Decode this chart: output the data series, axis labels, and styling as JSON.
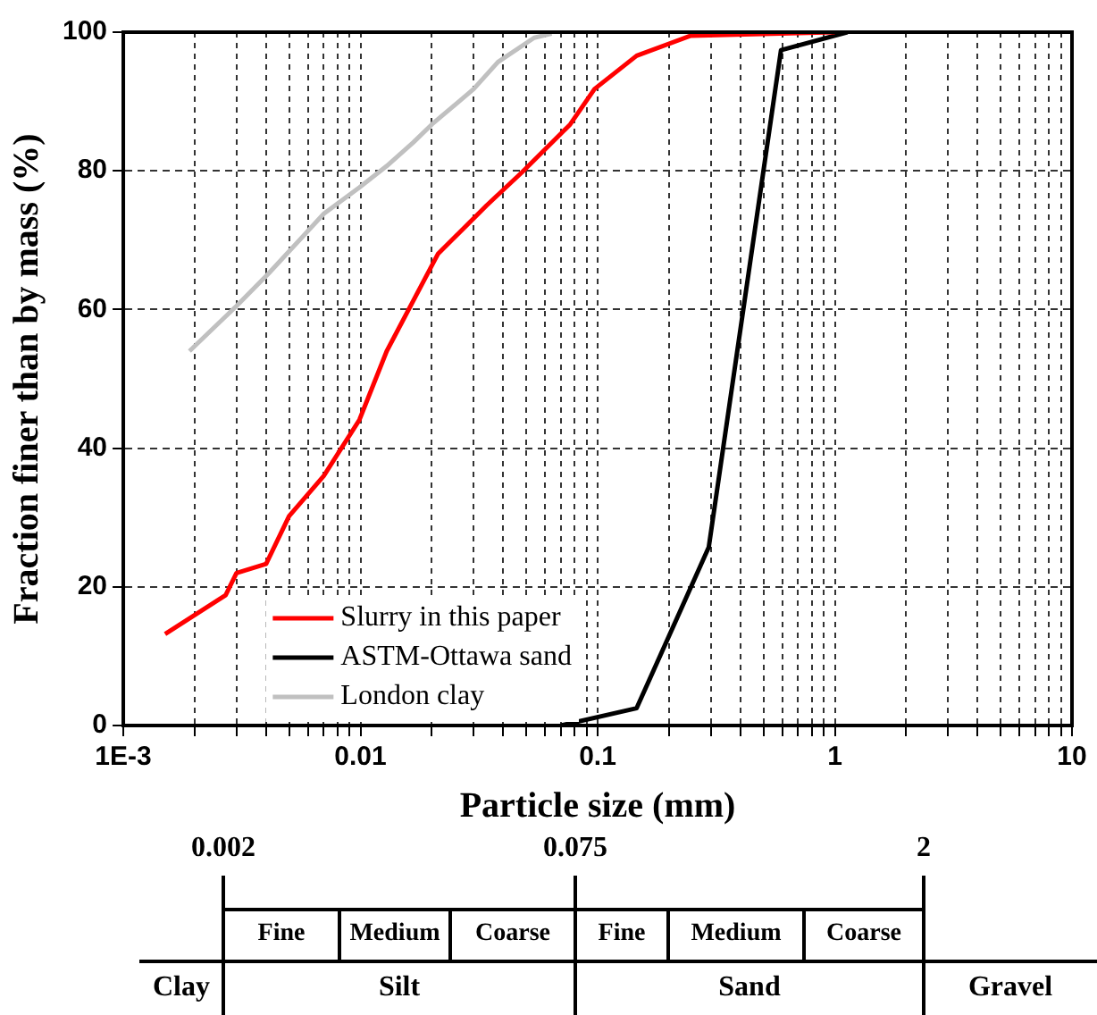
{
  "chart_data": {
    "type": "line",
    "xlabel": "Particle size (mm)",
    "ylabel": "Fraction finer than by mass (%)",
    "log": "x",
    "grid": true,
    "legend": "bottom",
    "marker": "none",
    "line_style": "solid",
    "xlim": [
      0.001,
      10
    ],
    "ylim": [
      0,
      100
    ],
    "xticks": [
      {
        "value": 0.001,
        "label": "1E-3"
      },
      {
        "value": 0.002,
        "label": null
      },
      {
        "value": 0.003,
        "label": null
      },
      {
        "value": 0.004,
        "label": null
      },
      {
        "value": 0.005,
        "label": null
      },
      {
        "value": 0.006,
        "label": null
      },
      {
        "value": 0.007,
        "label": null
      },
      {
        "value": 0.008,
        "label": null
      },
      {
        "value": 0.009,
        "label": null
      },
      {
        "value": 0.01,
        "label": "0.01"
      },
      {
        "value": 0.02,
        "label": null
      },
      {
        "value": 0.03,
        "label": null
      },
      {
        "value": 0.04,
        "label": null
      },
      {
        "value": 0.05,
        "label": null
      },
      {
        "value": 0.06,
        "label": null
      },
      {
        "value": 0.07,
        "label": null
      },
      {
        "value": 0.08,
        "label": null
      },
      {
        "value": 0.09,
        "label": null
      },
      {
        "value": 0.1,
        "label": "0.1"
      },
      {
        "value": 0.2,
        "label": null
      },
      {
        "value": 0.3,
        "label": null
      },
      {
        "value": 0.4,
        "label": null
      },
      {
        "value": 0.5,
        "label": null
      },
      {
        "value": 0.6,
        "label": null
      },
      {
        "value": 0.7,
        "label": null
      },
      {
        "value": 0.8,
        "label": null
      },
      {
        "value": 0.9,
        "label": null
      },
      {
        "value": 1,
        "label": "1"
      },
      {
        "value": 2,
        "label": null
      },
      {
        "value": 3,
        "label": null
      },
      {
        "value": 4,
        "label": null
      },
      {
        "value": 5,
        "label": null
      },
      {
        "value": 6,
        "label": null
      },
      {
        "value": 7,
        "label": null
      },
      {
        "value": 8,
        "label": null
      },
      {
        "value": 9,
        "label": null
      },
      {
        "value": 10,
        "label": "10"
      }
    ],
    "yticks": [
      0,
      20,
      40,
      60,
      80,
      100
    ],
    "series": [
      {
        "name": "Slurry in this paper",
        "color": "#ff0000",
        "x": [
          0.0015,
          0.0027,
          0.003,
          0.004,
          0.005,
          0.007,
          0.0099,
          0.0129,
          0.0212,
          0.034,
          0.048,
          0.0766,
          0.097,
          0.146,
          0.247,
          1.0
        ],
        "values": [
          13.2,
          18.8,
          22,
          23.3,
          30.2,
          36,
          44.1,
          54,
          68,
          75,
          79.8,
          86.7,
          91.8,
          96.6,
          99.5,
          100
        ]
      },
      {
        "name": "ASTM-Ottawa sand",
        "color": "#000000",
        "x": [
          0.07,
          0.146,
          0.294,
          0.593,
          1.13
        ],
        "values": [
          0,
          2.5,
          25.7,
          97.4,
          100
        ]
      },
      {
        "name": "London clay",
        "color": "#c0c0c0",
        "x": [
          0.0019,
          0.003,
          0.0041,
          0.007,
          0.0099,
          0.0129,
          0.0167,
          0.02,
          0.03,
          0.038,
          0.054,
          0.064
        ],
        "values": [
          54,
          60.5,
          65.2,
          73.8,
          77.6,
          80.7,
          84.1,
          86.7,
          91.8,
          95.7,
          99.2,
          99.8
        ]
      }
    ],
    "annotations": [
      "0.002",
      "0.075",
      "2",
      "Fine",
      "Medium",
      "Coarse",
      "Fine",
      "Medium",
      "Coarse",
      "Clay",
      "Silt",
      "Sand",
      "Gravel"
    ]
  }
}
